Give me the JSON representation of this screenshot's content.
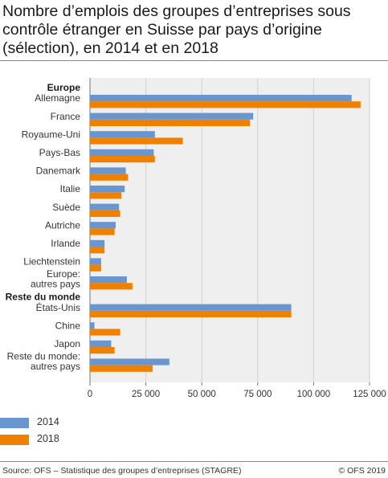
{
  "title": "Nombre d’emplois des groupes d’entreprises sous contrôle étranger en Suisse par pays d’origine (sélection), en 2014 et en 2018",
  "source": "Source: OFS – Statistique des groupes d’entreprises (STAGRE)",
  "copyright": "© OFS 2019",
  "colors": {
    "series_2014": "#6a96cf",
    "series_2018": "#f08000",
    "plot_bg": "#efefef",
    "grid": "#d2d2d2"
  },
  "chart_data": {
    "type": "bar",
    "orientation": "horizontal",
    "title": "Nombre d’emplois des groupes d’entreprises sous contrôle étranger en Suisse par pays d’origine (sélection), en 2014 et en 2018",
    "xlim": [
      0,
      125000
    ],
    "x_ticks": [
      0,
      25000,
      50000,
      75000,
      100000,
      125000
    ],
    "x_tick_labels": [
      "0",
      "25 000",
      "50 000",
      "75 000",
      "100 000",
      "125 000"
    ],
    "grid": true,
    "legend_position": "bottom-left",
    "groups": [
      {
        "header": "Europe",
        "categories": [
          {
            "label": "Allemagne",
            "v2014": 117000,
            "v2018": 121000
          },
          {
            "label": "France",
            "v2014": 73000,
            "v2018": 71500
          },
          {
            "label": "Royaume-Uni",
            "v2014": 29000,
            "v2018": 41500
          },
          {
            "label": "Pays-Bas",
            "v2014": 28500,
            "v2018": 29000
          },
          {
            "label": "Danemark",
            "v2014": 16000,
            "v2018": 17000
          },
          {
            "label": "Italie",
            "v2014": 15500,
            "v2018": 14000
          },
          {
            "label": "Suède",
            "v2014": 13000,
            "v2018": 13500
          },
          {
            "label": "Autriche",
            "v2014": 11500,
            "v2018": 11000
          },
          {
            "label": "Irlande",
            "v2014": 6500,
            "v2018": 6500
          },
          {
            "label": "Liechtenstein",
            "v2014": 5000,
            "v2018": 5000
          },
          {
            "label": [
              "Europe:",
              "autres pays"
            ],
            "v2014": 16500,
            "v2018": 19000
          }
        ]
      },
      {
        "header": "Reste du monde",
        "categories": [
          {
            "label": "États-Unis",
            "v2014": 90000,
            "v2018": 90000
          },
          {
            "label": "Chine",
            "v2014": 2000,
            "v2018": 13500
          },
          {
            "label": "Japon",
            "v2014": 9500,
            "v2018": 11000
          },
          {
            "label": [
              "Reste du monde:",
              "autres pays"
            ],
            "v2014": 35500,
            "v2018": 28000
          }
        ]
      }
    ],
    "series": [
      {
        "name": "2014",
        "key": "v2014",
        "color": "#6a96cf"
      },
      {
        "name": "2018",
        "key": "v2018",
        "color": "#f08000"
      }
    ]
  }
}
